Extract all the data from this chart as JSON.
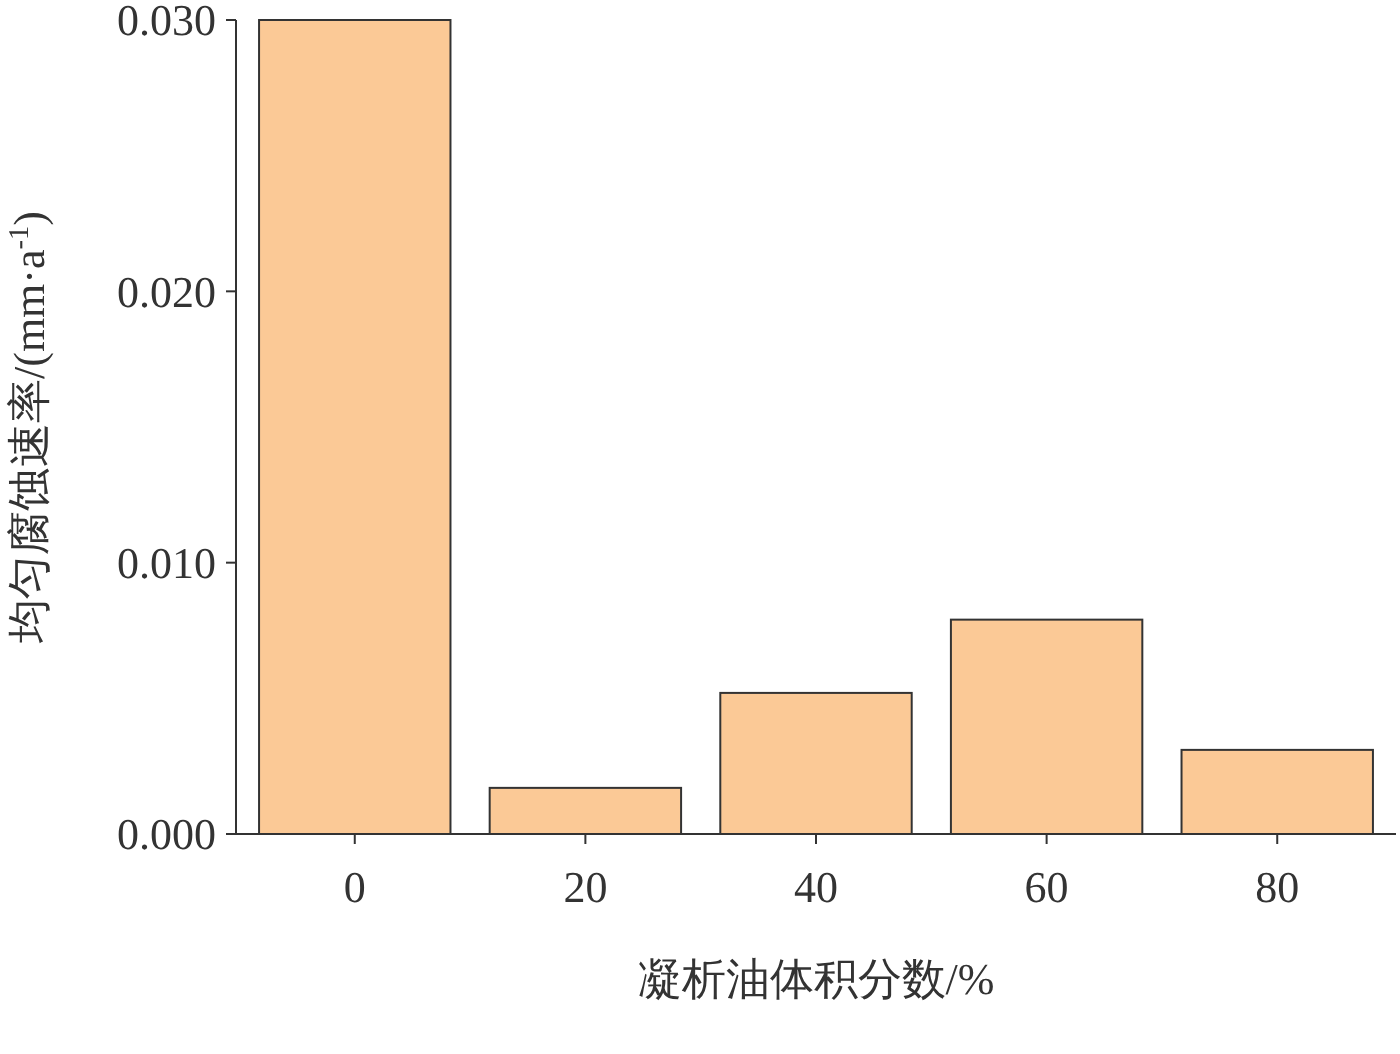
{
  "chart_data": {
    "type": "bar",
    "xlabel": "凝析油体积分数/%",
    "ylabel": "均匀腐蚀速率/(mm·a$^{-1}$)",
    "categories": [
      "0",
      "20",
      "40",
      "60",
      "80"
    ],
    "values": [
      0.03,
      0.0017,
      0.0052,
      0.0079,
      0.0031
    ],
    "color": "#fbc996",
    "ylim": [
      0,
      0.03
    ],
    "yticks": [
      {
        "value": 0,
        "label": "0.000"
      },
      {
        "value": 0.01,
        "label": "0.010"
      },
      {
        "value": 0.02,
        "label": "0.020"
      },
      {
        "value": 0.03,
        "label": "0.030"
      }
    ],
    "grid": false
  }
}
